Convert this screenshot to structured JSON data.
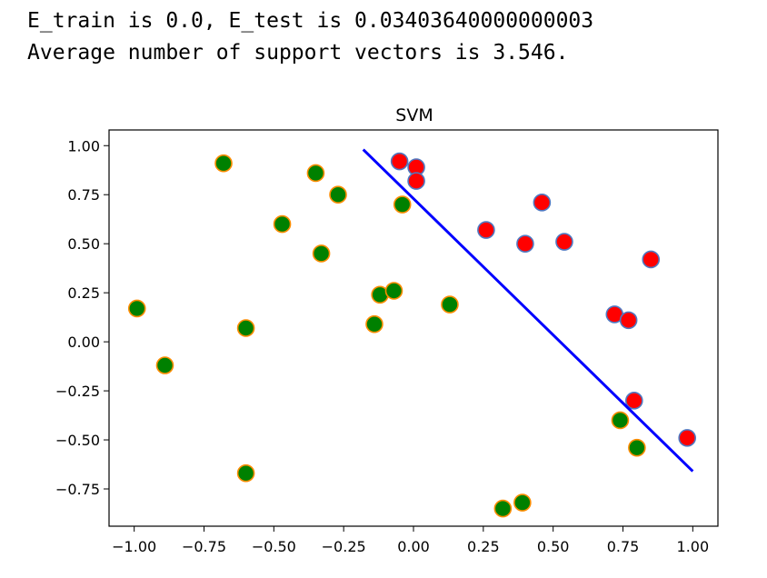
{
  "output": {
    "line1": "E_train is 0.0, E_test is 0.03403640000000003",
    "line2": "Average number of support vectors is 3.546."
  },
  "chart_data": {
    "type": "scatter",
    "title": "SVM",
    "xlabel": "",
    "ylabel": "",
    "xlim": [
      -1.09,
      1.09
    ],
    "ylim": [
      -0.94,
      1.08
    ],
    "x_ticks": [
      -1.0,
      -0.75,
      -0.5,
      -0.25,
      0.0,
      0.25,
      0.5,
      0.75,
      1.0
    ],
    "x_tick_labels": [
      "−1.00",
      "−0.75",
      "−0.50",
      "−0.25",
      "0.00",
      "0.25",
      "0.50",
      "0.75",
      "1.00"
    ],
    "y_ticks": [
      1.0,
      0.75,
      0.5,
      0.25,
      0.0,
      -0.25,
      -0.5,
      -0.75
    ],
    "y_tick_labels": [
      "1.00",
      "0.75",
      "0.50",
      "0.25",
      "0.00",
      "−0.25",
      "−0.50",
      "−0.75"
    ],
    "grid": false,
    "series": [
      {
        "color": "#008000",
        "edge_color": "#ff8c00",
        "points": [
          [
            -0.99,
            0.17
          ],
          [
            -0.89,
            -0.12
          ],
          [
            -0.68,
            0.91
          ],
          [
            -0.6,
            0.07
          ],
          [
            -0.6,
            -0.67
          ],
          [
            -0.47,
            0.6
          ],
          [
            -0.35,
            0.86
          ],
          [
            -0.33,
            0.45
          ],
          [
            -0.27,
            0.75
          ],
          [
            -0.14,
            0.09
          ],
          [
            -0.12,
            0.24
          ],
          [
            -0.07,
            0.26
          ],
          [
            -0.04,
            0.7
          ],
          [
            0.13,
            0.19
          ],
          [
            0.32,
            -0.85
          ],
          [
            0.39,
            -0.82
          ],
          [
            0.74,
            -0.4
          ],
          [
            0.8,
            -0.54
          ]
        ]
      },
      {
        "color": "#ff0000",
        "edge_color": "#4f79c2",
        "points": [
          [
            -0.05,
            0.92
          ],
          [
            0.01,
            0.89
          ],
          [
            0.01,
            0.82
          ],
          [
            0.26,
            0.57
          ],
          [
            0.4,
            0.5
          ],
          [
            0.46,
            0.71
          ],
          [
            0.54,
            0.51
          ],
          [
            0.72,
            0.14
          ],
          [
            0.77,
            0.11
          ],
          [
            0.79,
            -0.3
          ],
          [
            0.85,
            0.42
          ],
          [
            0.98,
            -0.49
          ]
        ]
      },
      {
        "type": "line",
        "color": "#0000ff",
        "points": [
          [
            -0.18,
            0.98
          ],
          [
            1.0,
            -0.66
          ]
        ]
      }
    ]
  }
}
